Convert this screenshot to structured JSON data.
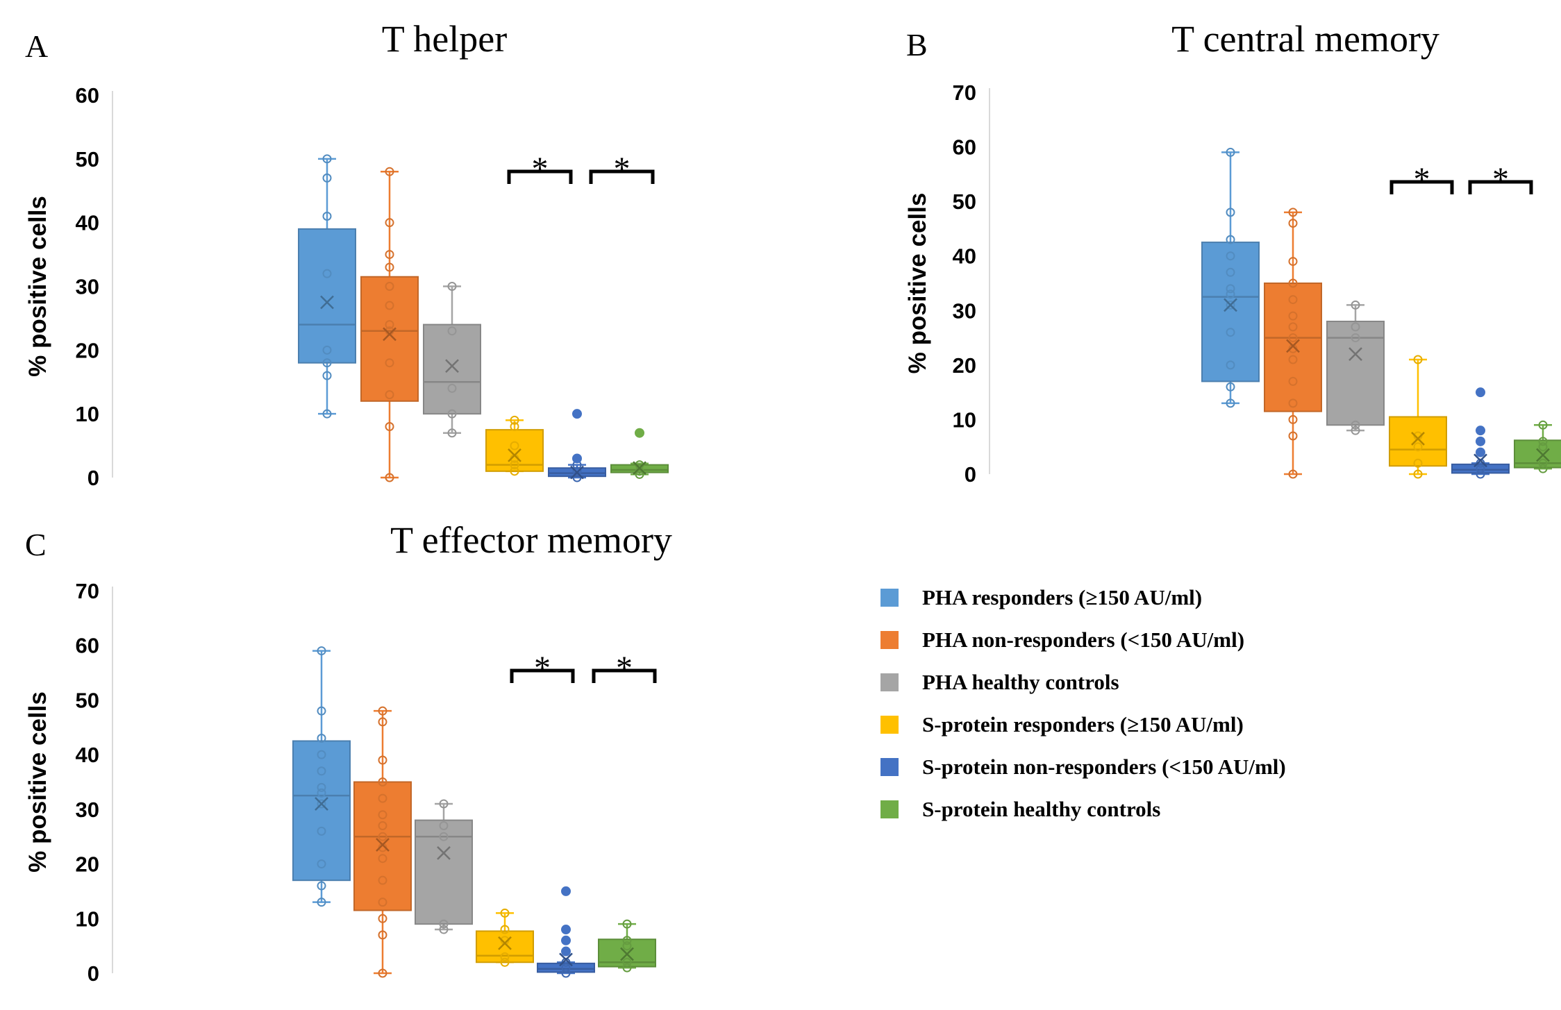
{
  "legend": [
    {
      "label": "PHA responders (≥150 AU/ml)",
      "color": "#5B9BD5"
    },
    {
      "label": "PHA non-responders (<150 AU/ml)",
      "color": "#ED7D31"
    },
    {
      "label": "PHA healthy controls",
      "color": "#A5A5A5"
    },
    {
      "label": "S-protein responders (≥150 AU/ml)",
      "color": "#FFC000"
    },
    {
      "label": "S-protein non-responders (<150 AU/ml)",
      "color": "#4472C4"
    },
    {
      "label": "S-protein healthy controls",
      "color": "#70AD47"
    }
  ],
  "chart_data": [
    {
      "type": "box",
      "letter": "A",
      "title": "T helper",
      "ylabel": "% positive cells",
      "ylim": [
        0,
        60
      ],
      "yticks": [
        0,
        10,
        20,
        30,
        40,
        50,
        60
      ],
      "significance": [
        "*",
        "*"
      ],
      "groups": [
        {
          "min": 10,
          "q1": 18,
          "median": 24,
          "q3": 39,
          "max": 50,
          "mean": 27.5,
          "points": [
            10,
            16,
            18,
            20,
            32,
            41,
            47,
            50
          ],
          "outliers": []
        },
        {
          "min": 0,
          "q1": 12,
          "median": 23,
          "q3": 31.5,
          "max": 48,
          "mean": 22.5,
          "points": [
            0,
            8,
            13,
            18,
            23,
            24,
            27,
            30,
            33,
            35,
            40,
            48
          ],
          "outliers": []
        },
        {
          "min": 7,
          "q1": 10,
          "median": 15,
          "q3": 24,
          "max": 30,
          "mean": 17.5,
          "points": [
            7,
            10,
            14,
            23,
            30
          ],
          "outliers": []
        },
        {
          "min": 1,
          "q1": 1,
          "median": 2,
          "q3": 7.5,
          "max": 9,
          "mean": 3.5,
          "points": [
            1,
            2,
            3,
            5,
            8,
            9
          ],
          "outliers": []
        },
        {
          "min": 0,
          "q1": 0.2,
          "median": 0.7,
          "q3": 1.5,
          "max": 2,
          "mean": 0.8,
          "points": [
            0,
            1,
            2
          ],
          "outliers": [
            3,
            10
          ]
        },
        {
          "min": 0.5,
          "q1": 0.8,
          "median": 1.2,
          "q3": 2,
          "max": 2.2,
          "mean": 1.5,
          "points": [
            0.5,
            1,
            2
          ],
          "outliers": [
            7
          ]
        }
      ]
    },
    {
      "type": "box",
      "letter": "B",
      "title": "T central memory",
      "ylabel": "% positive cells",
      "ylim": [
        0,
        70
      ],
      "yticks": [
        0,
        10,
        20,
        30,
        40,
        50,
        60,
        70
      ],
      "significance": [
        "*",
        "*"
      ],
      "groups": [
        {
          "min": 13,
          "q1": 17,
          "median": 32.5,
          "q3": 42.5,
          "max": 59,
          "mean": 31,
          "points": [
            13,
            16,
            20,
            26,
            31,
            33,
            34,
            37,
            40,
            43,
            48,
            59
          ],
          "outliers": []
        },
        {
          "min": 0,
          "q1": 11.5,
          "median": 25,
          "q3": 35,
          "max": 48,
          "mean": 23.5,
          "points": [
            0,
            7,
            10,
            13,
            17,
            21,
            23,
            25,
            27,
            29,
            32,
            35,
            39,
            46,
            48
          ],
          "outliers": []
        },
        {
          "min": 8,
          "q1": 9,
          "median": 25,
          "q3": 28,
          "max": 31,
          "mean": 22,
          "points": [
            8,
            9,
            25,
            27,
            31
          ],
          "outliers": []
        },
        {
          "min": 0,
          "q1": 1.5,
          "median": 4.5,
          "q3": 10.5,
          "max": 21,
          "mean": 6.5,
          "points": [
            0,
            2,
            5,
            7,
            21
          ],
          "outliers": []
        },
        {
          "min": 0,
          "q1": 0.2,
          "median": 0.8,
          "q3": 1.8,
          "max": 2,
          "mean": 2.5,
          "points": [
            0,
            1,
            2
          ],
          "outliers": [
            4,
            6,
            8,
            15
          ]
        },
        {
          "min": 1,
          "q1": 1.2,
          "median": 2,
          "q3": 6.2,
          "max": 9,
          "mean": 3.5,
          "points": [
            1,
            2,
            5,
            6,
            9
          ],
          "outliers": []
        }
      ]
    },
    {
      "type": "box",
      "letter": "C",
      "title": "T effector memory",
      "ylabel": "% positive cells",
      "ylim": [
        0,
        70
      ],
      "yticks": [
        0,
        10,
        20,
        30,
        40,
        50,
        60,
        70
      ],
      "significance": [
        "*",
        "*"
      ],
      "groups": [
        {
          "min": 13,
          "q1": 17,
          "median": 32.5,
          "q3": 42.5,
          "max": 59,
          "mean": 31,
          "points": [
            13,
            16,
            20,
            26,
            31,
            33,
            34,
            37,
            40,
            43,
            48,
            59
          ],
          "outliers": []
        },
        {
          "min": 0,
          "q1": 11.5,
          "median": 25,
          "q3": 35,
          "max": 48,
          "mean": 23.5,
          "points": [
            0,
            7,
            10,
            13,
            17,
            21,
            23,
            25,
            27,
            29,
            32,
            35,
            39,
            46,
            48
          ],
          "outliers": []
        },
        {
          "min": 8,
          "q1": 9,
          "median": 25,
          "q3": 28,
          "max": 31,
          "mean": 22,
          "points": [
            8,
            9,
            25,
            27,
            31
          ],
          "outliers": []
        },
        {
          "min": 2,
          "q1": 2,
          "median": 3.2,
          "q3": 7.7,
          "max": 11,
          "mean": 5.5,
          "points": [
            2,
            3,
            6,
            8,
            11
          ],
          "outliers": []
        },
        {
          "min": 0,
          "q1": 0.2,
          "median": 0.8,
          "q3": 1.8,
          "max": 2,
          "mean": 2.5,
          "points": [
            0,
            1,
            2
          ],
          "outliers": [
            4,
            6,
            8,
            15
          ]
        },
        {
          "min": 1,
          "q1": 1.2,
          "median": 2,
          "q3": 6.2,
          "max": 9,
          "mean": 3.5,
          "points": [
            1,
            2,
            5,
            6,
            9
          ],
          "outliers": []
        }
      ]
    }
  ]
}
